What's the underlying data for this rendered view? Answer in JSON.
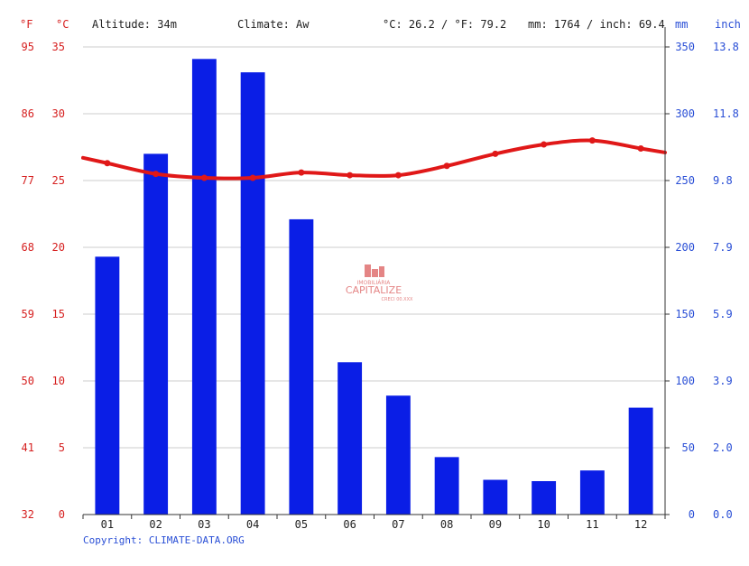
{
  "header": {
    "unit_f": "°F",
    "unit_c": "°C",
    "altitude": "Altitude: 34m",
    "climate": "Climate: Aw",
    "avg_temp": "°C: 26.2 / °F: 79.2",
    "precip_total": "mm: 1764 / inch: 69.4",
    "unit_mm": "mm",
    "unit_inch": "inch"
  },
  "watermark": {
    "small": "IMOBILIÁRIA",
    "big": "CAPITALIZE",
    "sub": "CRECI 00.XXX"
  },
  "copyright": "Copyright: CLIMATE-DATA.ORG",
  "colors": {
    "bars": "#0a1ee6",
    "temp_line": "#e01818",
    "temp_axis": "#d62020",
    "precip_axis": "#2a4fd6",
    "grid": "#cccccc"
  },
  "chart_data": {
    "type": "bar",
    "categories": [
      "01",
      "02",
      "03",
      "04",
      "05",
      "06",
      "07",
      "08",
      "09",
      "10",
      "11",
      "12"
    ],
    "series": [
      {
        "type": "bar",
        "axis": "precipitation_mm",
        "values": [
          193,
          270,
          341,
          331,
          221,
          114,
          89,
          43,
          26,
          25,
          33,
          80
        ]
      },
      {
        "type": "line",
        "axis": "temperature_c",
        "values": [
          26.3,
          25.5,
          25.2,
          25.2,
          25.6,
          25.4,
          25.4,
          26.1,
          27.0,
          27.7,
          28.0,
          27.4
        ]
      }
    ],
    "temp_c_ticks": [
      "0",
      "5",
      "10",
      "15",
      "20",
      "25",
      "30",
      "35"
    ],
    "temp_f_ticks": [
      "32",
      "41",
      "50",
      "59",
      "68",
      "77",
      "86",
      "95"
    ],
    "precip_mm_ticks": [
      "0",
      "50",
      "100",
      "150",
      "200",
      "250",
      "300",
      "350"
    ],
    "precip_inch_ticks": [
      "0.0",
      "2.0",
      "3.9",
      "5.9",
      "7.9",
      "9.8",
      "11.8",
      "13.8"
    ],
    "temp_c_range": [
      0,
      35
    ],
    "precip_mm_range": [
      0,
      350
    ],
    "grid": true
  }
}
